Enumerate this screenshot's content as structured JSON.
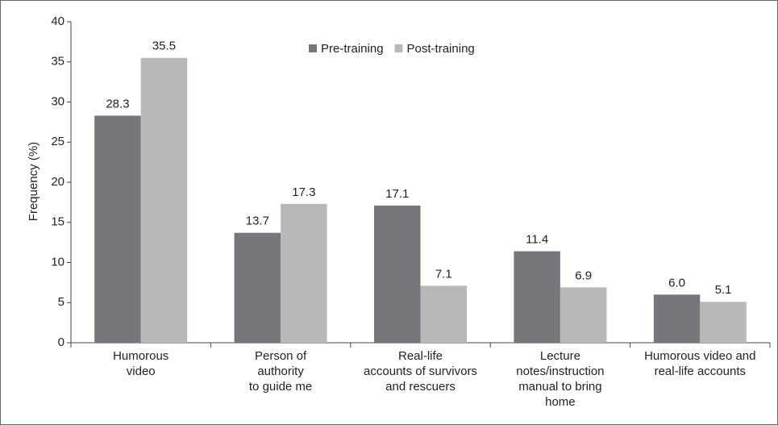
{
  "chart_data": {
    "type": "bar",
    "y_label": "Frequency  (%)",
    "categories": [
      [
        "Humorous",
        "video"
      ],
      [
        "Person of",
        "authority",
        "to guide me"
      ],
      [
        "Real-life",
        "accounts of survivors",
        "and rescuers"
      ],
      [
        "Lecture",
        "notes/instruction",
        "manual to bring",
        "home"
      ],
      [
        "Humorous video and",
        "real-life accounts"
      ]
    ],
    "series": [
      {
        "name": "Pre-training",
        "color": "#77777b",
        "values": [
          28.3,
          13.7,
          17.1,
          11.4,
          6.0
        ],
        "value_labels": [
          "28.3",
          "13.7",
          "17.1",
          "11.4",
          "6.0"
        ]
      },
      {
        "name": "Post-training",
        "color": "#b8b8ba",
        "values": [
          35.5,
          17.3,
          7.1,
          6.9,
          5.1
        ],
        "value_labels": [
          "35.5",
          "17.3",
          "7.1",
          "6.9",
          "5.1"
        ]
      }
    ],
    "ylim": [
      0,
      40
    ],
    "yticks": [
      0,
      5,
      10,
      15,
      20,
      25,
      30,
      35,
      40
    ],
    "legend": "top"
  }
}
